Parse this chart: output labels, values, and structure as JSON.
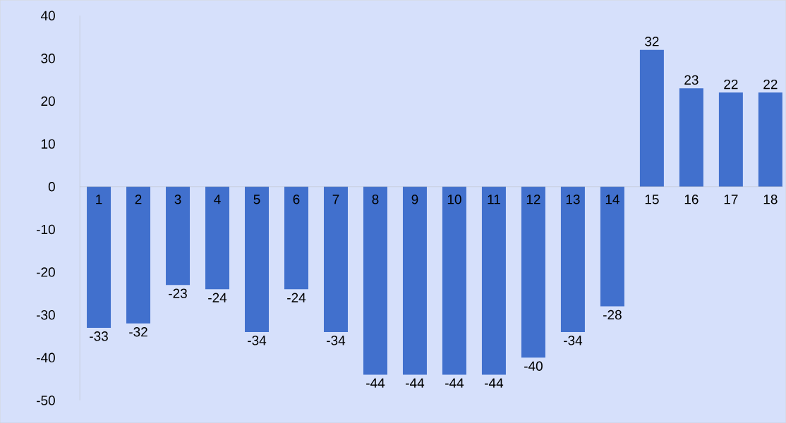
{
  "chart_data": {
    "type": "bar",
    "categories": [
      "1",
      "2",
      "3",
      "4",
      "5",
      "6",
      "7",
      "8",
      "9",
      "10",
      "11",
      "12",
      "13",
      "14",
      "15",
      "16",
      "17",
      "18"
    ],
    "values": [
      -33,
      -32,
      -23,
      -24,
      -34,
      -24,
      -34,
      -44,
      -44,
      -44,
      -44,
      -40,
      -34,
      -28,
      32,
      23,
      22,
      22
    ],
    "color": "#4170cd",
    "ylim": [
      -50,
      40
    ],
    "yticks": [
      -50,
      -40,
      -30,
      -20,
      -10,
      0,
      10,
      20,
      30,
      40
    ],
    "data_labels": true,
    "grid": false
  }
}
